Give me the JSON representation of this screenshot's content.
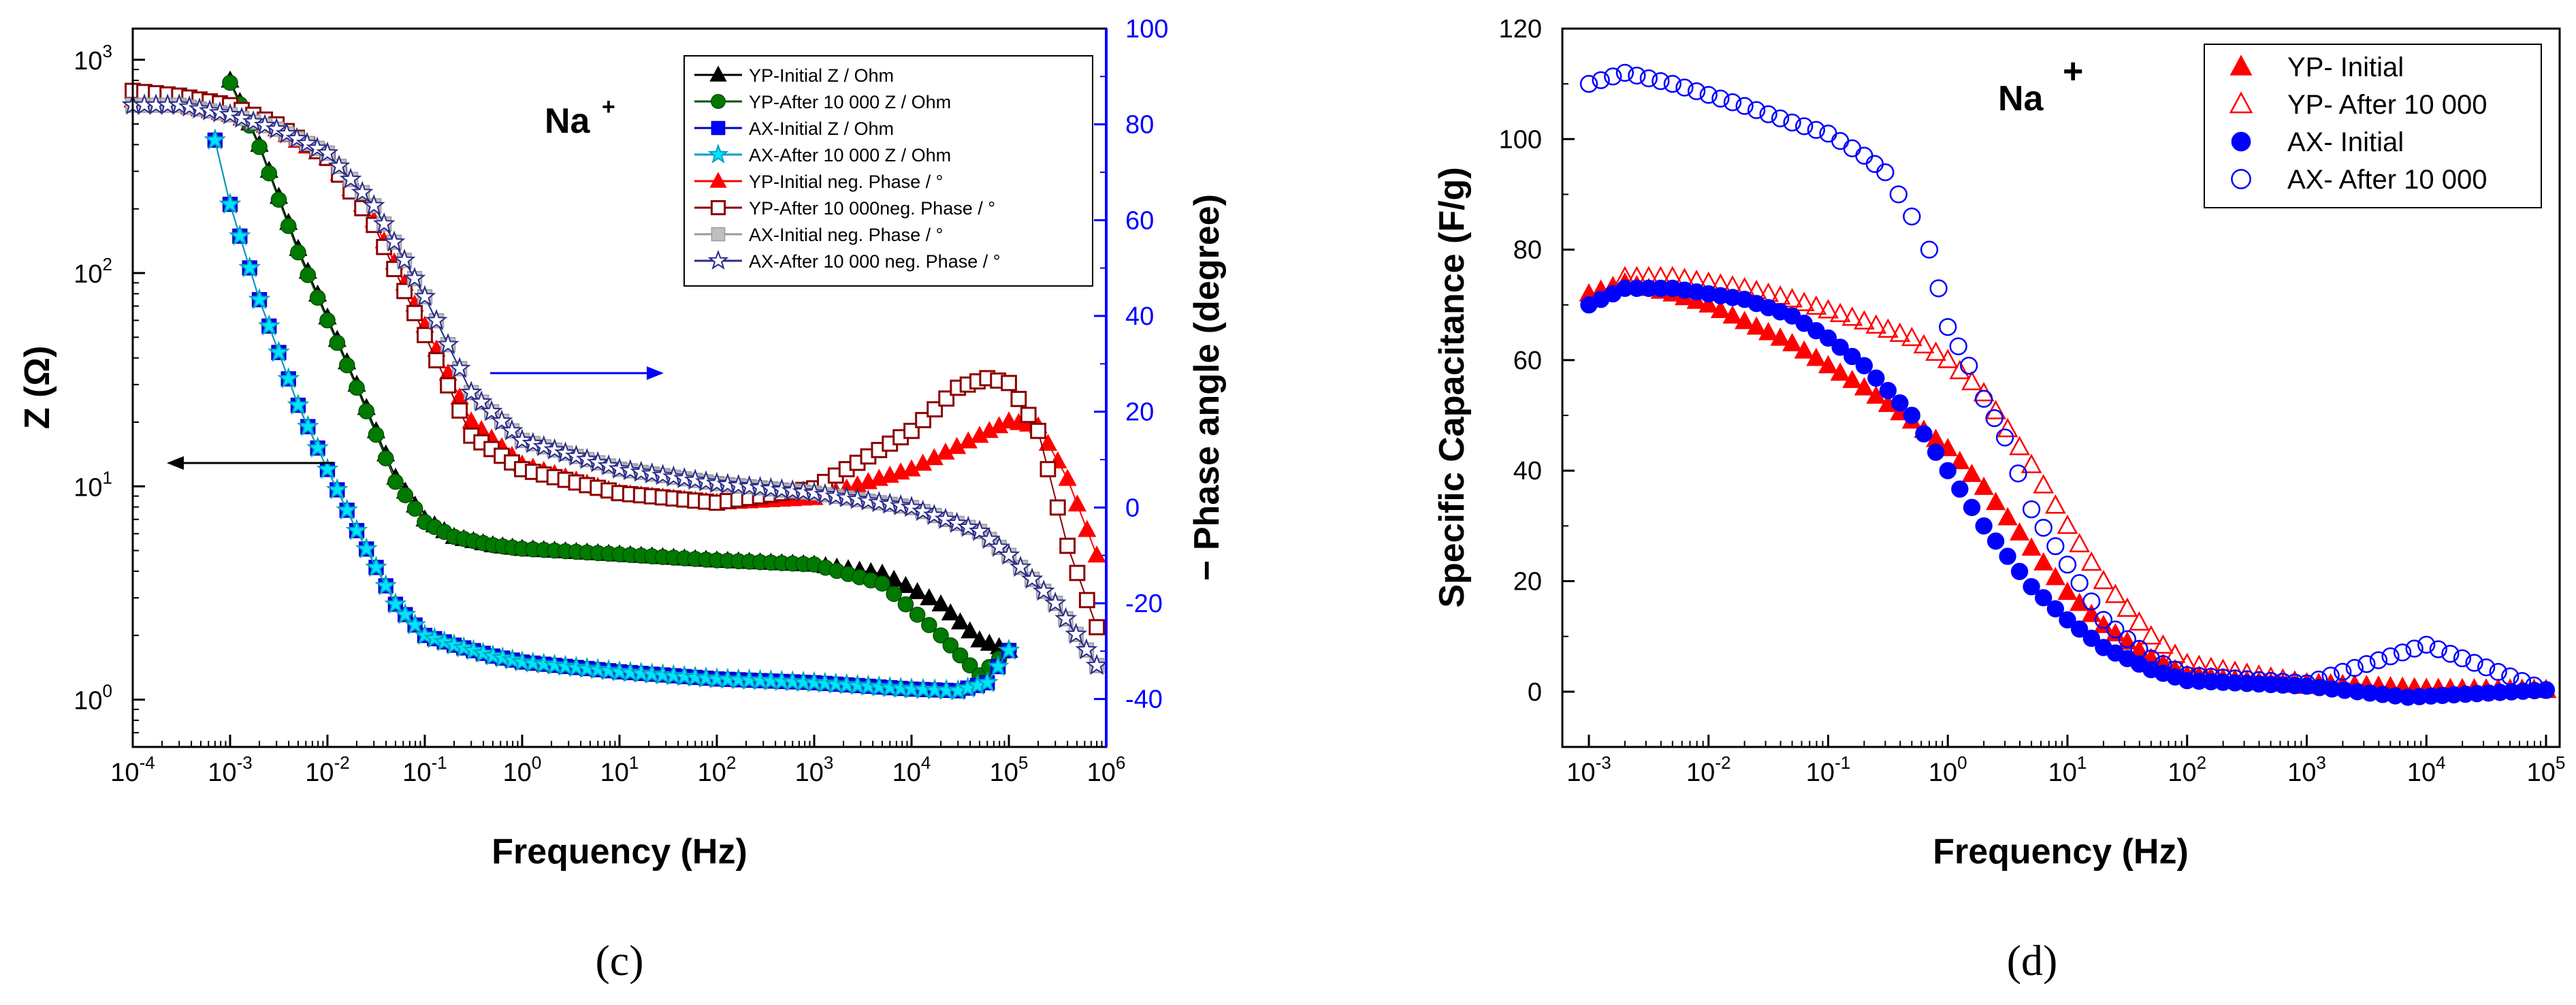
{
  "figure": {
    "panel_c_label": "(c)",
    "panel_d_label": "(d)"
  },
  "chart_data": [
    {
      "type": "scatter",
      "panel": "(c)",
      "title": "",
      "annotation": "Na+",
      "annotation_main": "Na",
      "annotation_sup": "+",
      "xlabel": "Frequency (Hz)",
      "ylabel": "Z (Ω)",
      "y2label": "− Phase angle (degree)",
      "xscale": "log",
      "yscale": "log",
      "xlim": [
        0.0001,
        1000000
      ],
      "ylim": [
        0.6,
        1400
      ],
      "y2lim": [
        -50,
        100
      ],
      "x_ticks": [
        {
          "base": "10",
          "exp": "-4"
        },
        {
          "base": "10",
          "exp": "-3"
        },
        {
          "base": "10",
          "exp": "-2"
        },
        {
          "base": "10",
          "exp": "-1"
        },
        {
          "base": "10",
          "exp": "0"
        },
        {
          "base": "10",
          "exp": "1"
        },
        {
          "base": "10",
          "exp": "2"
        },
        {
          "base": "10",
          "exp": "3"
        },
        {
          "base": "10",
          "exp": "4"
        },
        {
          "base": "10",
          "exp": "5"
        },
        {
          "base": "10",
          "exp": "6"
        }
      ],
      "y_ticks": [
        {
          "base": "10",
          "exp": "0"
        },
        {
          "base": "10",
          "exp": "1"
        },
        {
          "base": "10",
          "exp": "2"
        },
        {
          "base": "10",
          "exp": "3"
        }
      ],
      "y2_ticks": [
        "-40",
        "-20",
        "0",
        "20",
        "40",
        "60",
        "80",
        "100"
      ],
      "y2_tick_values": [
        -40,
        -20,
        0,
        20,
        40,
        60,
        80,
        100
      ],
      "y2_color": "#0000ff",
      "legend_position": "top-right",
      "series": [
        {
          "name": "YP-Initial Z / Ohm",
          "axis": "left",
          "marker": "triangle",
          "fill": "#000000",
          "stroke": "#000000",
          "line": true,
          "x": [
            0.001,
            0.002,
            0.005,
            0.01,
            0.02,
            0.05,
            0.1,
            0.2,
            0.5,
            1,
            10,
            100,
            1000,
            5000,
            20000,
            50000,
            100000
          ],
          "y": [
            800,
            400,
            130,
            62,
            30,
            11,
            7,
            5.8,
            5.3,
            5.1,
            4.8,
            4.5,
            4.3,
            3.9,
            2.8,
            1.9,
            1.7
          ]
        },
        {
          "name": "YP-After 10 000 Z / Ohm",
          "axis": "left",
          "marker": "circle",
          "fill": "#007a00",
          "stroke": "#005000",
          "line": true,
          "x": [
            0.001,
            0.002,
            0.005,
            0.01,
            0.02,
            0.05,
            0.1,
            0.2,
            0.5,
            1,
            10,
            100,
            1000,
            5000,
            20000,
            50000,
            100000
          ],
          "y": [
            780,
            390,
            125,
            60,
            29,
            10.5,
            6.8,
            5.8,
            5.3,
            5.1,
            4.8,
            4.5,
            4.3,
            3.5,
            2,
            1.3,
            1.7
          ]
        },
        {
          "name": "AX-Initial Z / Ohm",
          "axis": "left",
          "marker": "square",
          "fill": "#0000ff",
          "stroke": "#0000c0",
          "line": true,
          "x": [
            0.0007,
            0.001,
            0.002,
            0.005,
            0.01,
            0.02,
            0.05,
            0.1,
            0.2,
            0.5,
            1,
            10,
            100,
            1000,
            10000,
            30000,
            60000,
            100000
          ],
          "y": [
            420,
            210,
            75,
            24,
            12,
            6.2,
            2.8,
            2,
            1.8,
            1.6,
            1.5,
            1.35,
            1.25,
            1.2,
            1.12,
            1.1,
            1.2,
            1.7
          ]
        },
        {
          "name": "AX-After 10 000 Z / Ohm",
          "axis": "left",
          "marker": "star",
          "fill": "#00e5ff",
          "stroke": "#00a0c0",
          "line": true,
          "x": [
            0.0007,
            0.001,
            0.002,
            0.005,
            0.01,
            0.02,
            0.05,
            0.1,
            0.2,
            0.5,
            1,
            10,
            100,
            1000,
            10000,
            30000,
            60000,
            100000
          ],
          "y": [
            420,
            210,
            75,
            24,
            12,
            6.2,
            2.8,
            2,
            1.8,
            1.6,
            1.5,
            1.35,
            1.25,
            1.2,
            1.12,
            1.1,
            1.2,
            1.7
          ]
        },
        {
          "name": "YP-Initial neg. Phase / °",
          "axis": "right",
          "marker": "triangle",
          "fill": "#ff0000",
          "stroke": "#ff0000",
          "line": true,
          "x": [
            0.0001,
            0.0003,
            0.001,
            0.003,
            0.01,
            0.03,
            0.1,
            0.3,
            1,
            10,
            100,
            1000,
            10000,
            50000,
            100000,
            200000,
            400000,
            800000
          ],
          "y": [
            85,
            84,
            82,
            79,
            73,
            60,
            38,
            18,
            9,
            3,
            1,
            2,
            8,
            15,
            18,
            17,
            6,
            -10
          ]
        },
        {
          "name": "YP-After 10 000neg. Phase / °",
          "axis": "right",
          "marker": "square-open",
          "fill": "#ffffff",
          "stroke": "#8b0000",
          "line": true,
          "x": [
            0.0001,
            0.0003,
            0.001,
            0.003,
            0.01,
            0.03,
            0.1,
            0.3,
            1,
            10,
            100,
            1000,
            10000,
            30000,
            60000,
            100000,
            200000,
            400000,
            800000
          ],
          "y": [
            87,
            86,
            84,
            80,
            73,
            59,
            36,
            15,
            8,
            3,
            1,
            4,
            16,
            25,
            27,
            26,
            16,
            -8,
            -25
          ]
        },
        {
          "name": "AX-Initial neg. Phase / °",
          "axis": "right",
          "marker": "square",
          "fill": "#bfbfbf",
          "stroke": "#9a9a9a",
          "line": true,
          "x": [
            0.0001,
            0.0003,
            0.001,
            0.003,
            0.01,
            0.03,
            0.1,
            0.3,
            1,
            10,
            100,
            1000,
            10000,
            50000,
            100000,
            300000,
            800000
          ],
          "y": [
            84,
            84,
            82,
            79,
            74,
            63,
            44,
            24,
            14,
            8,
            5,
            3,
            0,
            -5,
            -10,
            -20,
            -33
          ]
        },
        {
          "name": "AX-After 10 000 neg. Phase / °",
          "axis": "right",
          "marker": "star-open",
          "fill": "#ffffff",
          "stroke": "#2b2b8a",
          "line": true,
          "x": [
            0.0001,
            0.0003,
            0.001,
            0.003,
            0.01,
            0.03,
            0.1,
            0.3,
            1,
            10,
            100,
            1000,
            10000,
            50000,
            100000,
            300000,
            800000
          ],
          "y": [
            84,
            84,
            82,
            79,
            74,
            63,
            44,
            24,
            14,
            8,
            5,
            3,
            0,
            -5,
            -10,
            -20,
            -33
          ]
        }
      ]
    },
    {
      "type": "scatter",
      "panel": "(d)",
      "title": "",
      "annotation": "Na +",
      "annotation_main": "Na",
      "annotation_sup": "+",
      "xlabel": "Frequency (Hz)",
      "ylabel": "Specific Capacitance (F/g)",
      "xscale": "log",
      "xlim": [
        0.0006,
        130000
      ],
      "ylim": [
        -10,
        120
      ],
      "x_ticks": [
        {
          "base": "10",
          "exp": "-3"
        },
        {
          "base": "10",
          "exp": "-2"
        },
        {
          "base": "10",
          "exp": "-1"
        },
        {
          "base": "10",
          "exp": "0"
        },
        {
          "base": "10",
          "exp": "1"
        },
        {
          "base": "10",
          "exp": "2"
        },
        {
          "base": "10",
          "exp": "3"
        },
        {
          "base": "10",
          "exp": "4"
        },
        {
          "base": "10",
          "exp": "5"
        }
      ],
      "y_ticks": [
        "0",
        "20",
        "40",
        "60",
        "80",
        "100",
        "120"
      ],
      "y_tick_values": [
        0,
        20,
        40,
        60,
        80,
        100,
        120
      ],
      "legend_position": "top-right",
      "series": [
        {
          "name": "YP- Initial",
          "marker": "triangle",
          "fill": "#ff0000",
          "stroke": "#ff0000",
          "x": [
            0.001,
            0.002,
            0.005,
            0.01,
            0.02,
            0.05,
            0.1,
            0.2,
            0.5,
            1,
            2,
            5,
            10,
            20,
            50,
            100,
            1000,
            10000,
            100000
          ],
          "y": [
            72,
            74,
            72,
            70,
            67,
            63,
            59,
            55,
            49,
            44,
            37,
            26,
            18,
            12,
            6,
            3,
            1,
            0.5,
            0.3
          ]
        },
        {
          "name": "YP- After 10 000",
          "marker": "triangle-open",
          "fill": "none",
          "stroke": "#ff0000",
          "x": [
            0.002,
            0.005,
            0.01,
            0.02,
            0.05,
            0.1,
            0.2,
            0.5,
            1,
            2,
            5,
            10,
            20,
            50,
            100,
            1000,
            10000,
            100000
          ],
          "y": [
            75,
            75,
            74,
            73,
            71,
            69,
            67,
            64,
            60,
            54,
            41,
            30,
            20,
            10,
            5,
            1.5,
            0.5,
            0.3
          ]
        },
        {
          "name": "AX- Initial",
          "marker": "circle",
          "fill": "#0000ff",
          "stroke": "#0000ff",
          "x": [
            0.001,
            0.002,
            0.005,
            0.01,
            0.02,
            0.05,
            0.1,
            0.2,
            0.5,
            1,
            2,
            5,
            10,
            20,
            50,
            100,
            1000,
            7000,
            100000
          ],
          "y": [
            70,
            73,
            73,
            72,
            71,
            68,
            64,
            59,
            50,
            40,
            30,
            19,
            13,
            8,
            4,
            2,
            1,
            -1,
            0.3
          ]
        },
        {
          "name": "AX- After 10 000",
          "marker": "circle-open",
          "fill": "none",
          "stroke": "#0000ff",
          "x": [
            0.001,
            0.002,
            0.005,
            0.01,
            0.02,
            0.05,
            0.1,
            0.2,
            0.3,
            0.5,
            0.7,
            1,
            1.5,
            2,
            3,
            5,
            10,
            20,
            50,
            100,
            1000,
            10000,
            100000
          ],
          "y": [
            110,
            112,
            110,
            108,
            106,
            103,
            101,
            97,
            94,
            86,
            80,
            66,
            59,
            53,
            46,
            33,
            23,
            13,
            6,
            3,
            1.5,
            8.5,
            0.3
          ]
        }
      ]
    }
  ]
}
